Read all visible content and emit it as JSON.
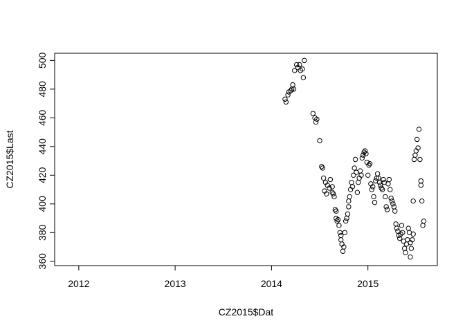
{
  "chart_data": {
    "type": "scatter",
    "title": "",
    "xlabel": "CZ2015$Dat",
    "ylabel": "CZ2015$Last",
    "xlim": [
      2011.75,
      2015.72
    ],
    "ylim": [
      357,
      505
    ],
    "x_ticks": [
      2012,
      2013,
      2014,
      2015
    ],
    "x_tick_labels": [
      "2012",
      "2013",
      "2014",
      "2015"
    ],
    "y_ticks": [
      360,
      380,
      400,
      420,
      440,
      460,
      480,
      500
    ],
    "y_tick_labels": [
      "360",
      "380",
      "400",
      "420",
      "440",
      "460",
      "480",
      "500"
    ],
    "grid": false,
    "legend": "none",
    "series": [
      {
        "marker": "open-circle",
        "points": [
          [
            2014.14,
            473
          ],
          [
            2014.15,
            471
          ],
          [
            2014.17,
            476
          ],
          [
            2014.18,
            478
          ],
          [
            2014.2,
            479
          ],
          [
            2014.21,
            480
          ],
          [
            2014.22,
            483
          ],
          [
            2014.23,
            480
          ],
          [
            2014.24,
            493
          ],
          [
            2014.26,
            497
          ],
          [
            2014.27,
            495
          ],
          [
            2014.29,
            497
          ],
          [
            2014.3,
            493
          ],
          [
            2014.34,
            500
          ],
          [
            2014.33,
            488
          ],
          [
            2014.32,
            494
          ],
          [
            2014.43,
            463
          ],
          [
            2014.45,
            460
          ],
          [
            2014.46,
            457
          ],
          [
            2014.47,
            459
          ],
          [
            2014.5,
            444
          ],
          [
            2014.52,
            426
          ],
          [
            2014.53,
            425
          ],
          [
            2014.54,
            418
          ],
          [
            2014.56,
            415
          ],
          [
            2014.55,
            409
          ],
          [
            2014.57,
            407
          ],
          [
            2014.58,
            413
          ],
          [
            2014.6,
            411
          ],
          [
            2014.61,
            417
          ],
          [
            2014.63,
            412
          ],
          [
            2014.63,
            408
          ],
          [
            2014.64,
            407
          ],
          [
            2014.65,
            405
          ],
          [
            2014.66,
            396
          ],
          [
            2014.67,
            395
          ],
          [
            2014.67,
            390
          ],
          [
            2014.68,
            388
          ],
          [
            2014.69,
            389
          ],
          [
            2014.7,
            385
          ],
          [
            2014.71,
            380
          ],
          [
            2014.72,
            378
          ],
          [
            2014.72,
            375
          ],
          [
            2014.73,
            372
          ],
          [
            2014.74,
            367
          ],
          [
            2014.75,
            370
          ],
          [
            2014.76,
            380
          ],
          [
            2014.77,
            388
          ],
          [
            2014.78,
            390
          ],
          [
            2014.79,
            393
          ],
          [
            2014.8,
            398
          ],
          [
            2014.8,
            402
          ],
          [
            2014.81,
            405
          ],
          [
            2014.82,
            410
          ],
          [
            2014.83,
            415
          ],
          [
            2014.84,
            412
          ],
          [
            2014.85,
            420
          ],
          [
            2014.86,
            425
          ],
          [
            2014.87,
            431
          ],
          [
            2014.88,
            422
          ],
          [
            2014.89,
            408
          ],
          [
            2014.9,
            415
          ],
          [
            2014.91,
            418
          ],
          [
            2014.92,
            423
          ],
          [
            2014.93,
            420
          ],
          [
            2014.94,
            432
          ],
          [
            2014.95,
            434
          ],
          [
            2014.96,
            436
          ],
          [
            2014.97,
            437
          ],
          [
            2014.98,
            435
          ],
          [
            2014.99,
            429
          ],
          [
            2015.0,
            420
          ],
          [
            2015.01,
            427
          ],
          [
            2015.02,
            428
          ],
          [
            2015.03,
            414
          ],
          [
            2015.04,
            410
          ],
          [
            2015.05,
            412
          ],
          [
            2015.06,
            405
          ],
          [
            2015.07,
            401
          ],
          [
            2015.08,
            416
          ],
          [
            2015.09,
            418
          ],
          [
            2015.1,
            421
          ],
          [
            2015.11,
            418
          ],
          [
            2015.12,
            415
          ],
          [
            2015.13,
            413
          ],
          [
            2015.14,
            411
          ],
          [
            2015.15,
            410
          ],
          [
            2015.16,
            417
          ],
          [
            2015.17,
            415
          ],
          [
            2015.18,
            405
          ],
          [
            2015.19,
            398
          ],
          [
            2015.2,
            396
          ],
          [
            2015.21,
            414
          ],
          [
            2015.22,
            417
          ],
          [
            2015.23,
            410
          ],
          [
            2015.24,
            404
          ],
          [
            2015.25,
            402
          ],
          [
            2015.26,
            400
          ],
          [
            2015.27,
            398
          ],
          [
            2015.28,
            395
          ],
          [
            2015.29,
            386
          ],
          [
            2015.3,
            383
          ],
          [
            2015.31,
            381
          ],
          [
            2015.32,
            378
          ],
          [
            2015.33,
            376
          ],
          [
            2015.34,
            379
          ],
          [
            2015.35,
            385
          ],
          [
            2015.36,
            380
          ],
          [
            2015.37,
            374
          ],
          [
            2015.38,
            369
          ],
          [
            2015.39,
            366
          ],
          [
            2015.4,
            372
          ],
          [
            2015.41,
            375
          ],
          [
            2015.42,
            383
          ],
          [
            2015.43,
            380
          ],
          [
            2015.44,
            373
          ],
          [
            2015.44,
            363
          ],
          [
            2015.45,
            369
          ],
          [
            2015.46,
            375
          ],
          [
            2015.47,
            379
          ],
          [
            2015.47,
            402
          ],
          [
            2015.48,
            431
          ],
          [
            2015.49,
            434
          ],
          [
            2015.5,
            437
          ],
          [
            2015.51,
            445
          ],
          [
            2015.52,
            439
          ],
          [
            2015.53,
            452
          ],
          [
            2015.54,
            431
          ],
          [
            2015.55,
            416
          ],
          [
            2015.55,
            413
          ],
          [
            2015.56,
            402
          ],
          [
            2015.57,
            385
          ],
          [
            2015.58,
            388
          ]
        ]
      }
    ]
  }
}
